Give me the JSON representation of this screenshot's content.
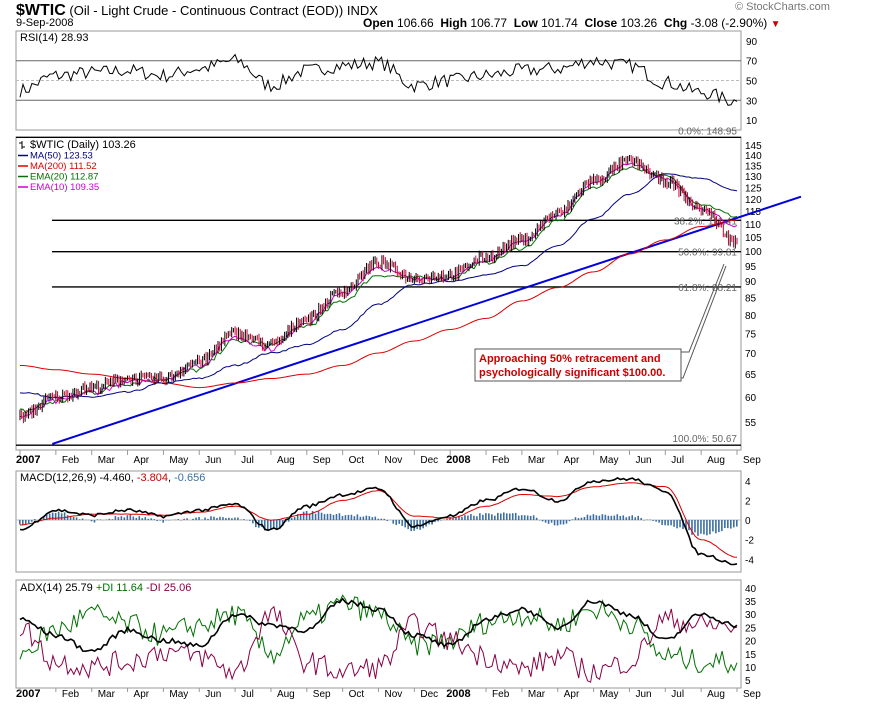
{
  "header": {
    "symbol": "$WTIC",
    "description": "(Oil - Light Crude - Continuous Contract (EOD))",
    "exchange": "INDX",
    "date": "9-Sep-2008",
    "open_label": "Open",
    "open": "106.66",
    "high_label": "High",
    "high": "106.77",
    "low_label": "Low",
    "low": "101.74",
    "close_label": "Close",
    "close": "103.26",
    "chg_label": "Chg",
    "chg": "-3.08 (-2.90%)"
  },
  "watermark": "© StockCharts.com",
  "colors": {
    "price_up": "#000000",
    "price_down": "#cc0033",
    "ma50": "#000080",
    "ma200": "#dd0000",
    "ema20": "#007000",
    "ema10": "#cc00cc",
    "trendline": "#0000dd",
    "macd": "#000000",
    "signal": "#dd0000",
    "histogram": "#3a6ea5",
    "plus_di": "#007000",
    "minus_di": "#880044",
    "annotation": "#cc0000"
  },
  "rsi_panel": {
    "label": "RSI(14) 28.93",
    "y_ticks": [
      "90",
      "70",
      "50",
      "30",
      "10"
    ],
    "tick_values": [
      90,
      70,
      50,
      30,
      10
    ],
    "ylim": [
      0,
      100
    ],
    "overbought": 70,
    "oversold": 30
  },
  "price_panel": {
    "legend": [
      {
        "label": "$WTIC (Daily) 103.26",
        "color": "#000000",
        "type": "ohlc"
      },
      {
        "label": "MA(50) 123.53",
        "color": "#000080",
        "type": "line"
      },
      {
        "label": "MA(200) 111.52",
        "color": "#dd0000",
        "type": "line"
      },
      {
        "label": "EMA(20) 112.87",
        "color": "#007000",
        "type": "line"
      },
      {
        "label": "EMA(10) 109.35",
        "color": "#cc00cc",
        "type": "line"
      }
    ],
    "y_ticks": [
      "145",
      "140",
      "135",
      "130",
      "125",
      "120",
      "115",
      "110",
      "105",
      "100",
      "95",
      "90",
      "85",
      "80",
      "75",
      "70",
      "65",
      "60",
      "55"
    ],
    "tick_values": [
      145,
      140,
      135,
      130,
      125,
      120,
      115,
      110,
      105,
      100,
      95,
      90,
      85,
      80,
      75,
      70,
      65,
      60,
      55
    ],
    "ylim": [
      50,
      147.6
    ],
    "log_scale": true,
    "fib_levels": [
      {
        "label": "0.0%: 148.95",
        "value": 148.95
      },
      {
        "label": "38.2%: 111.41",
        "value": 111.41
      },
      {
        "label": "50.0%: 99.81",
        "value": 99.81
      },
      {
        "label": "61.8%: 88.21",
        "value": 88.21
      },
      {
        "label": "100.0%: 50.67",
        "value": 50.67
      }
    ],
    "annotation": "Approaching 50% retracement and psychologically significant $100.00.",
    "annotation_lines": [
      "Approaching 50% retracement and",
      "psychologically significant $100.00."
    ]
  },
  "macd_panel": {
    "label": "MACD(12,26,9) -4.460, -3.804, -0.656",
    "label_parts": [
      "MACD(12,26,9) ",
      "-4.460",
      ", ",
      "-3.804",
      ", ",
      "-0.656"
    ],
    "y_ticks": [
      "4",
      "2",
      "0",
      "-2",
      "-4"
    ],
    "tick_values": [
      4,
      2,
      0,
      -2,
      -4
    ],
    "ylim": [
      -5.3,
      5.0
    ]
  },
  "adx_panel": {
    "label_parts": [
      "ADX(14) 25.79 ",
      "+DI 11.64 ",
      "-DI 25.06"
    ],
    "y_ticks": [
      "40",
      "35",
      "30",
      "25",
      "20",
      "15",
      "10",
      "5"
    ],
    "tick_values": [
      40,
      35,
      30,
      25,
      20,
      15,
      10,
      5
    ],
    "ylim": [
      2,
      43
    ]
  },
  "x_axis": {
    "labels": [
      "2007",
      "Feb",
      "Mar",
      "Apr",
      "May",
      "Jun",
      "Jul",
      "Aug",
      "Sep",
      "Oct",
      "Nov",
      "Dec",
      "2008",
      "Feb",
      "Mar",
      "Apr",
      "May",
      "Jun",
      "Jul",
      "Aug",
      "Sep"
    ],
    "bold": [
      true,
      false,
      false,
      false,
      false,
      false,
      false,
      false,
      false,
      false,
      false,
      false,
      true,
      false,
      false,
      false,
      false,
      false,
      false,
      false,
      false
    ]
  },
  "chart_data": {
    "type": "line",
    "title": "$WTIC (Oil - Light Crude - Continuous Contract (EOD))",
    "x": [
      "2007-01",
      "2007-02",
      "2007-03",
      "2007-04",
      "2007-05",
      "2007-06",
      "2007-07",
      "2007-08",
      "2007-09",
      "2007-10",
      "2007-11",
      "2007-12",
      "2008-01",
      "2008-02",
      "2008-03",
      "2008-04",
      "2008-05",
      "2008-06",
      "2008-07",
      "2008-08",
      "2008-09"
    ],
    "series": [
      {
        "name": "$WTIC (Daily) 103.26",
        "values": [
          56,
          60,
          62,
          64,
          64,
          68,
          75,
          72,
          79,
          87,
          96,
          91,
          92,
          98,
          104,
          114,
          128,
          137,
          128,
          116,
          103
        ]
      },
      {
        "name": "MA(50) 123.53",
        "values": [
          61,
          60,
          60,
          61,
          63,
          64,
          67,
          70,
          72,
          76,
          83,
          89,
          90,
          92,
          95,
          102,
          112,
          122,
          131,
          129,
          123.5
        ]
      },
      {
        "name": "MA(200) 111.52",
        "values": [
          67,
          66,
          65,
          64,
          63,
          62,
          63,
          64,
          65,
          67,
          70,
          73,
          76,
          79,
          84,
          88,
          93,
          99,
          104,
          109,
          111.5
        ]
      },
      {
        "name": "EMA(20) 112.87",
        "values": [
          57,
          59,
          61,
          63,
          64,
          66,
          73,
          72,
          77,
          84,
          92,
          91,
          91,
          96,
          101,
          111,
          125,
          134,
          130,
          118,
          112.9
        ]
      },
      {
        "name": "EMA(10) 109.35",
        "values": [
          56,
          59,
          61,
          63,
          64,
          67,
          74,
          71,
          78,
          86,
          94,
          91,
          91,
          97,
          103,
          113,
          127,
          136,
          129,
          116,
          109.4
        ]
      }
    ],
    "fib_retracement": {
      "0.0%": 148.95,
      "38.2%": 111.41,
      "50.0%": 99.81,
      "61.8%": 88.21,
      "100.0%": 50.67
    },
    "ylim": [
      50,
      147.6
    ],
    "legend": "top-left",
    "grid": false,
    "indicators": {
      "RSI(14)": {
        "last": 28.93,
        "values": [
          40,
          55,
          58,
          60,
          55,
          62,
          70,
          45,
          60,
          65,
          68,
          45,
          50,
          55,
          60,
          62,
          70,
          65,
          48,
          38,
          28.9
        ],
        "ylim": [
          0,
          100
        ]
      },
      "MACD(12,26,9)": {
        "macd": -4.46,
        "signal": -3.804,
        "histogram": -0.656,
        "macd_values": [
          -1.0,
          1.0,
          0.5,
          1.0,
          0.4,
          1.0,
          1.6,
          -1.0,
          1.4,
          2.6,
          3.2,
          -0.6,
          0.4,
          2.0,
          3.2,
          2.0,
          4.0,
          4.2,
          3.0,
          -3.5,
          -4.46
        ],
        "signal_values": [
          -0.5,
          0.2,
          0.6,
          0.6,
          0.5,
          0.8,
          1.4,
          0.0,
          0.6,
          2.0,
          3.0,
          0.4,
          0.2,
          1.4,
          2.6,
          2.4,
          3.4,
          3.8,
          3.4,
          -2.0,
          -3.8
        ],
        "ylim": [
          -5.3,
          5.0
        ]
      },
      "ADX(14)": {
        "adx": 25.79,
        "plus_di": 11.64,
        "minus_di": 25.06,
        "adx_values": [
          28,
          22,
          16,
          24,
          20,
          18,
          30,
          26,
          24,
          35,
          32,
          22,
          18,
          28,
          32,
          25,
          35,
          30,
          20,
          30,
          25.8
        ],
        "plus_di_values": [
          15,
          24,
          30,
          26,
          22,
          26,
          30,
          15,
          28,
          34,
          30,
          18,
          20,
          27,
          30,
          26,
          32,
          27,
          14,
          12,
          11.6
        ],
        "minus_di_values": [
          25,
          12,
          10,
          12,
          16,
          14,
          8,
          30,
          12,
          8,
          10,
          26,
          20,
          14,
          9,
          14,
          8,
          12,
          28,
          26,
          25.1
        ],
        "ylim": [
          2,
          43
        ]
      }
    }
  }
}
